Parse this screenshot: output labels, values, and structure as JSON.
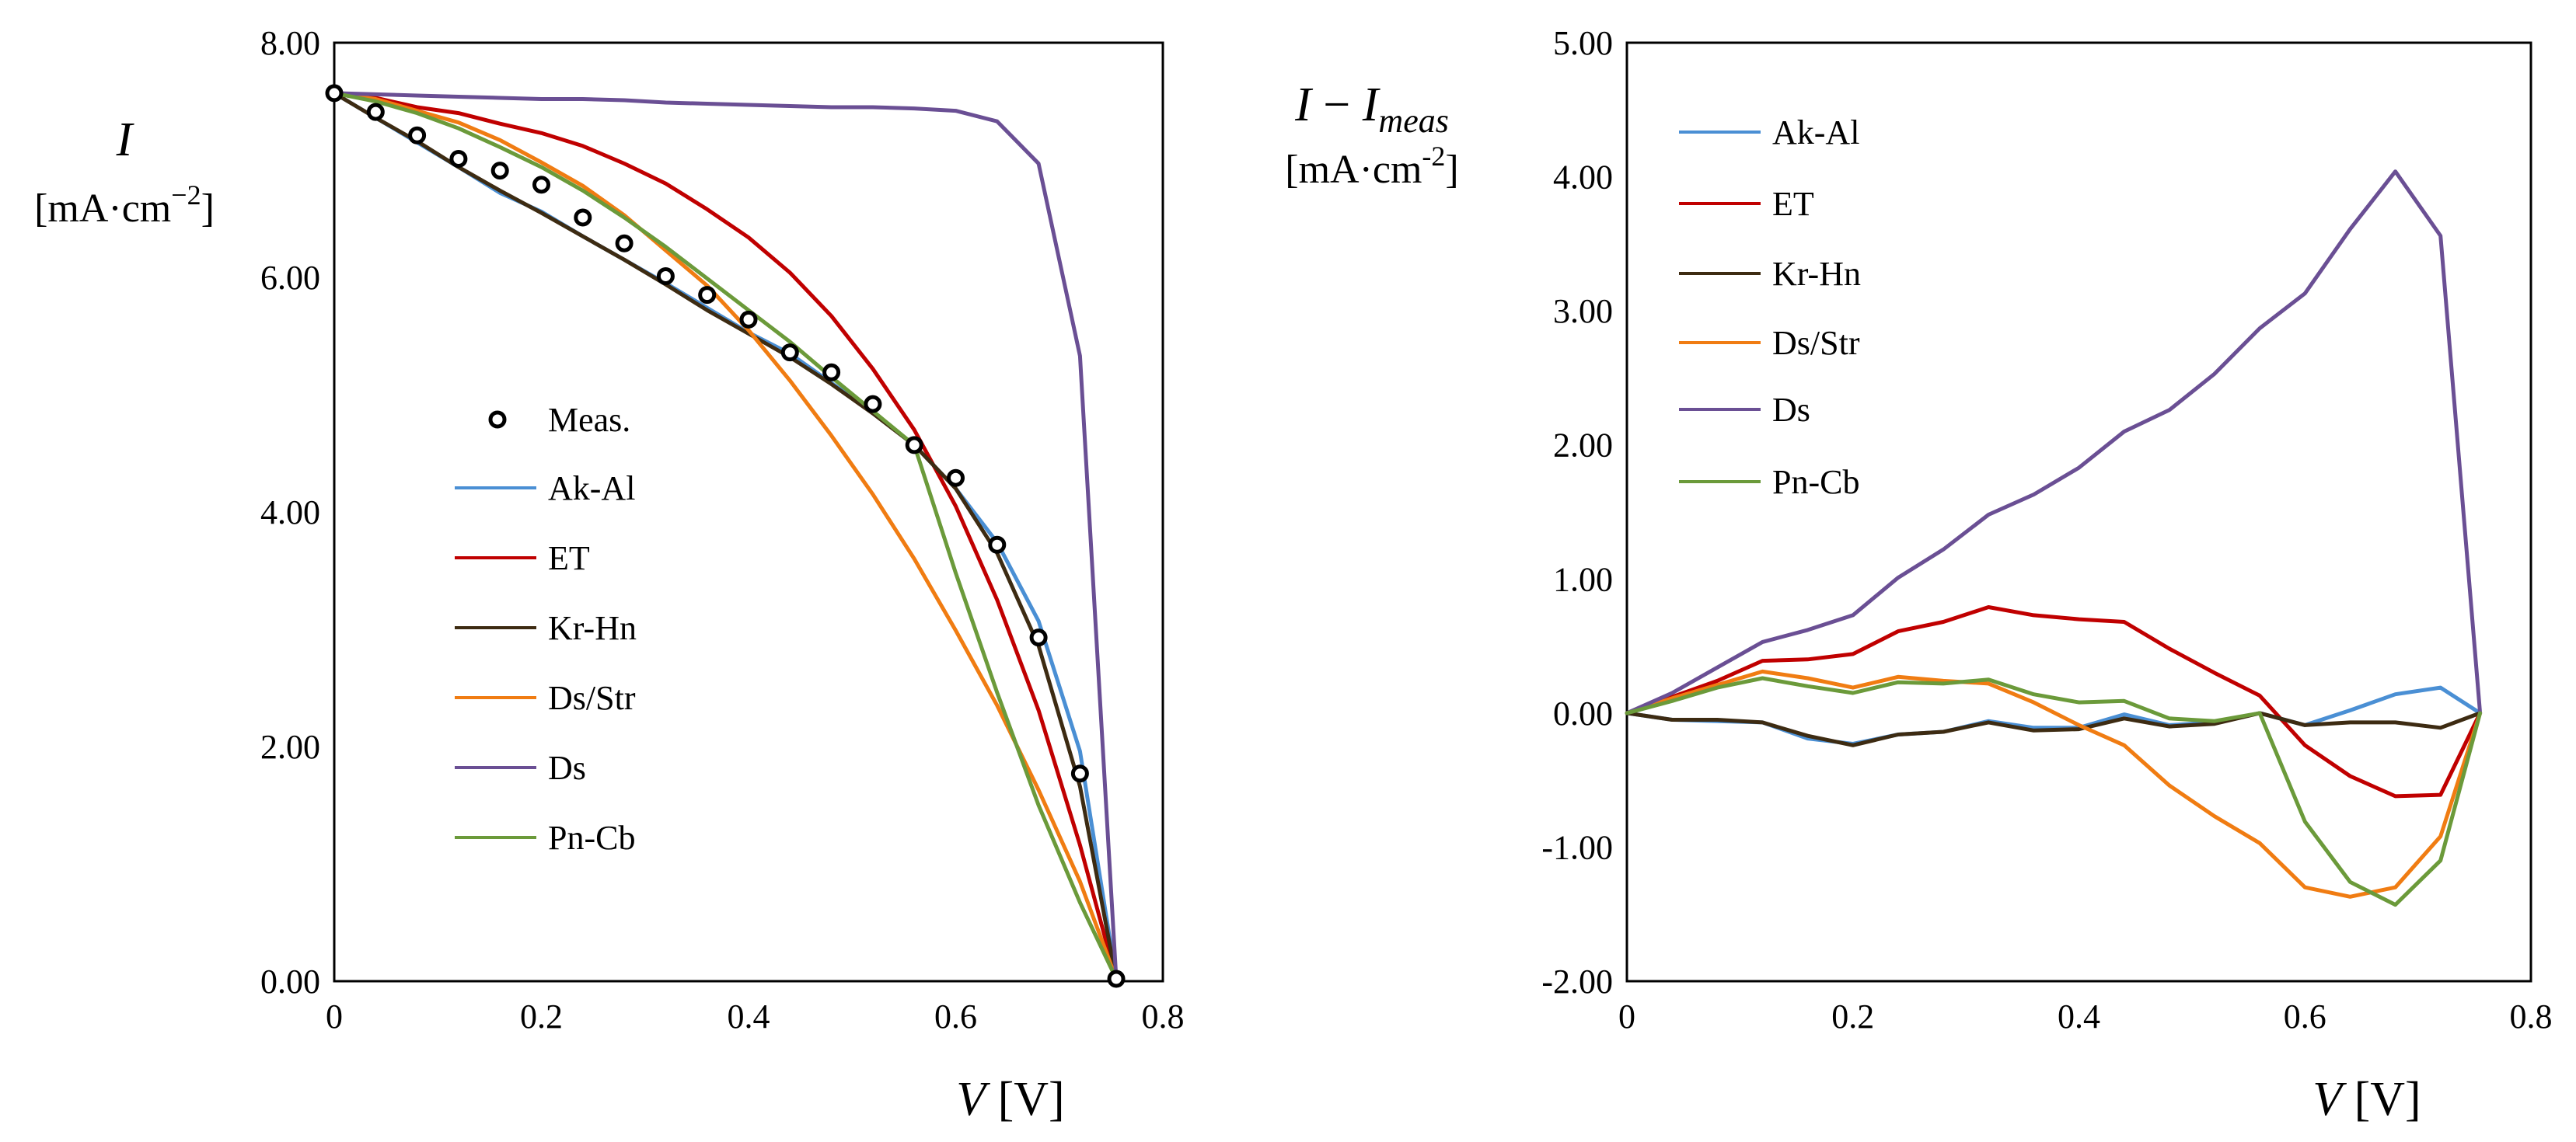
{
  "chart_data": [
    {
      "type": "line",
      "title": "",
      "xlabel": {
        "var": "V",
        "unit": " [V]"
      },
      "ylabel": {
        "var": "I",
        "unit": "[mA·cm",
        "unit_exp": "−2",
        "unit_close": "]"
      },
      "xlim": [
        0,
        0.8
      ],
      "ylim": [
        0,
        8
      ],
      "x_ticks": [
        "0",
        "0.2",
        "0.4",
        "0.6",
        "0.8"
      ],
      "x_tick_values": [
        0,
        0.2,
        0.4,
        0.6,
        0.8
      ],
      "y_ticks": [
        "0.00",
        "2.00",
        "4.00",
        "6.00",
        "8.00"
      ],
      "y_tick_values": [
        0,
        2,
        4,
        6,
        8
      ],
      "legend_position": "center",
      "measured": {
        "name": "Meas.",
        "x": [
          0,
          0.04,
          0.08,
          0.12,
          0.16,
          0.2,
          0.24,
          0.28,
          0.32,
          0.36,
          0.4,
          0.44,
          0.48,
          0.52,
          0.56,
          0.6,
          0.64,
          0.68,
          0.72,
          0.755
        ],
        "y": [
          7.57,
          7.41,
          7.21,
          7.01,
          6.91,
          6.79,
          6.51,
          6.29,
          6.01,
          5.85,
          5.64,
          5.36,
          5.19,
          4.92,
          4.57,
          4.29,
          3.72,
          2.93,
          1.77,
          0.02
        ]
      },
      "series": [
        {
          "name": "Ak-Al",
          "color": "#4a8fd4",
          "x": [
            0,
            0.04,
            0.08,
            0.12,
            0.16,
            0.2,
            0.24,
            0.28,
            0.32,
            0.36,
            0.4,
            0.44,
            0.48,
            0.52,
            0.56,
            0.6,
            0.64,
            0.68,
            0.72,
            0.755
          ],
          "y": [
            7.57,
            7.36,
            7.15,
            6.94,
            6.72,
            6.56,
            6.35,
            6.15,
            5.95,
            5.74,
            5.53,
            5.35,
            5.1,
            4.85,
            4.57,
            4.2,
            3.74,
            3.07,
            1.96,
            0.02
          ]
        },
        {
          "name": "ET",
          "color": "#c00000",
          "x": [
            0,
            0.04,
            0.08,
            0.12,
            0.16,
            0.2,
            0.24,
            0.28,
            0.32,
            0.36,
            0.4,
            0.44,
            0.48,
            0.52,
            0.56,
            0.6,
            0.64,
            0.68,
            0.72,
            0.755
          ],
          "y": [
            7.57,
            7.53,
            7.45,
            7.4,
            7.31,
            7.23,
            7.12,
            6.97,
            6.8,
            6.58,
            6.34,
            6.04,
            5.67,
            5.22,
            4.7,
            4.05,
            3.25,
            2.31,
            1.16,
            0.02
          ]
        },
        {
          "name": "Kr-Hn",
          "color": "#3d2b12",
          "x": [
            0,
            0.04,
            0.08,
            0.12,
            0.16,
            0.2,
            0.24,
            0.28,
            0.32,
            0.36,
            0.4,
            0.44,
            0.48,
            0.52,
            0.56,
            0.6,
            0.64,
            0.68,
            0.72,
            0.755
          ],
          "y": [
            7.57,
            7.36,
            7.16,
            6.94,
            6.74,
            6.55,
            6.35,
            6.15,
            5.94,
            5.72,
            5.52,
            5.32,
            5.09,
            4.84,
            4.57,
            4.2,
            3.65,
            2.86,
            1.66,
            0.02
          ]
        },
        {
          "name": "Ds/Str",
          "color": "#f07c12",
          "x": [
            0,
            0.04,
            0.08,
            0.12,
            0.16,
            0.2,
            0.24,
            0.28,
            0.32,
            0.36,
            0.4,
            0.44,
            0.48,
            0.52,
            0.56,
            0.6,
            0.64,
            0.68,
            0.72,
            0.755
          ],
          "y": [
            7.57,
            7.52,
            7.42,
            7.32,
            7.17,
            6.98,
            6.78,
            6.53,
            6.23,
            5.93,
            5.55,
            5.12,
            4.65,
            4.15,
            3.6,
            2.99,
            2.35,
            1.63,
            0.85,
            0.02
          ]
        },
        {
          "name": "Ds",
          "color": "#6a4f94",
          "x": [
            0,
            0.04,
            0.08,
            0.12,
            0.16,
            0.2,
            0.24,
            0.28,
            0.32,
            0.36,
            0.4,
            0.44,
            0.48,
            0.52,
            0.56,
            0.6,
            0.64,
            0.68,
            0.72,
            0.755
          ],
          "y": [
            7.57,
            7.56,
            7.55,
            7.54,
            7.53,
            7.52,
            7.52,
            7.51,
            7.49,
            7.48,
            7.47,
            7.46,
            7.45,
            7.45,
            7.44,
            7.42,
            7.33,
            6.97,
            5.33,
            0.02
          ]
        },
        {
          "name": "Pn-Cb",
          "color": "#6b9a3a",
          "x": [
            0,
            0.04,
            0.08,
            0.12,
            0.16,
            0.2,
            0.24,
            0.28,
            0.32,
            0.36,
            0.4,
            0.44,
            0.48,
            0.52,
            0.56,
            0.6,
            0.64,
            0.68,
            0.72,
            0.755
          ],
          "y": [
            7.57,
            7.5,
            7.4,
            7.27,
            7.11,
            6.94,
            6.74,
            6.51,
            6.26,
            5.99,
            5.72,
            5.45,
            5.15,
            4.86,
            4.57,
            3.48,
            2.46,
            1.5,
            0.67,
            0.02
          ]
        }
      ]
    },
    {
      "type": "line",
      "title": "",
      "xlabel": {
        "var": "V",
        "unit": " [V]"
      },
      "ylabel": {
        "var": "I",
        "sep": " − ",
        "var2": "I",
        "sub": "meas",
        "unit": "[mA·cm",
        "unit_exp": "-2",
        "unit_close": "]"
      },
      "xlim": [
        0,
        0.8
      ],
      "ylim": [
        -2,
        5
      ],
      "x_ticks": [
        "0",
        "0.2",
        "0.4",
        "0.6",
        "0.8"
      ],
      "x_tick_values": [
        0,
        0.2,
        0.4,
        0.6,
        0.8
      ],
      "y_ticks": [
        "-2.00",
        "-1.00",
        "0.00",
        "1.00",
        "2.00",
        "3.00",
        "4.00",
        "5.00"
      ],
      "y_tick_values": [
        -2,
        -1,
        0,
        1,
        2,
        3,
        4,
        5
      ],
      "legend_position": "top-left",
      "series": [
        {
          "name": "Ak-Al",
          "color": "#4a8fd4",
          "x": [
            0,
            0.04,
            0.08,
            0.12,
            0.16,
            0.2,
            0.24,
            0.28,
            0.32,
            0.36,
            0.4,
            0.44,
            0.48,
            0.52,
            0.56,
            0.6,
            0.64,
            0.68,
            0.72,
            0.755
          ],
          "y": [
            0,
            -0.05,
            -0.06,
            -0.07,
            -0.19,
            -0.23,
            -0.16,
            -0.14,
            -0.06,
            -0.11,
            -0.11,
            -0.01,
            -0.09,
            -0.07,
            0,
            -0.09,
            0.02,
            0.14,
            0.19,
            0
          ]
        },
        {
          "name": "ET",
          "color": "#c00000",
          "x": [
            0,
            0.04,
            0.08,
            0.12,
            0.16,
            0.2,
            0.24,
            0.28,
            0.32,
            0.36,
            0.4,
            0.44,
            0.48,
            0.52,
            0.56,
            0.6,
            0.64,
            0.68,
            0.72,
            0.755
          ],
          "y": [
            0,
            0.12,
            0.24,
            0.39,
            0.4,
            0.44,
            0.61,
            0.68,
            0.79,
            0.73,
            0.7,
            0.68,
            0.48,
            0.3,
            0.13,
            -0.24,
            -0.47,
            -0.62,
            -0.61,
            0
          ]
        },
        {
          "name": "Kr-Hn",
          "color": "#3d2b12",
          "x": [
            0,
            0.04,
            0.08,
            0.12,
            0.16,
            0.2,
            0.24,
            0.28,
            0.32,
            0.36,
            0.4,
            0.44,
            0.48,
            0.52,
            0.56,
            0.6,
            0.64,
            0.68,
            0.72,
            0.755
          ],
          "y": [
            0,
            -0.05,
            -0.05,
            -0.07,
            -0.17,
            -0.24,
            -0.16,
            -0.14,
            -0.07,
            -0.13,
            -0.12,
            -0.04,
            -0.1,
            -0.08,
            0,
            -0.09,
            -0.07,
            -0.07,
            -0.11,
            0
          ]
        },
        {
          "name": "Ds/Str",
          "color": "#f07c12",
          "x": [
            0,
            0.04,
            0.08,
            0.12,
            0.16,
            0.2,
            0.24,
            0.28,
            0.32,
            0.36,
            0.4,
            0.44,
            0.48,
            0.52,
            0.56,
            0.6,
            0.64,
            0.68,
            0.72,
            0.755
          ],
          "y": [
            0,
            0.11,
            0.21,
            0.31,
            0.26,
            0.19,
            0.27,
            0.24,
            0.22,
            0.08,
            -0.09,
            -0.24,
            -0.54,
            -0.77,
            -0.97,
            -1.3,
            -1.37,
            -1.3,
            -0.92,
            0
          ]
        },
        {
          "name": "Ds",
          "color": "#6a4f94",
          "x": [
            0,
            0.04,
            0.08,
            0.12,
            0.16,
            0.2,
            0.24,
            0.28,
            0.32,
            0.36,
            0.4,
            0.44,
            0.48,
            0.52,
            0.56,
            0.6,
            0.64,
            0.68,
            0.72,
            0.755
          ],
          "y": [
            0,
            0.15,
            0.34,
            0.53,
            0.62,
            0.73,
            1.01,
            1.22,
            1.48,
            1.63,
            1.83,
            2.1,
            2.26,
            2.53,
            2.87,
            3.13,
            3.61,
            4.04,
            3.56,
            0
          ]
        },
        {
          "name": "Pn-Cb",
          "color": "#6b9a3a",
          "x": [
            0,
            0.04,
            0.08,
            0.12,
            0.16,
            0.2,
            0.24,
            0.28,
            0.32,
            0.36,
            0.4,
            0.44,
            0.48,
            0.52,
            0.56,
            0.6,
            0.64,
            0.68,
            0.72,
            0.755
          ],
          "y": [
            0,
            0.09,
            0.19,
            0.26,
            0.2,
            0.15,
            0.23,
            0.22,
            0.25,
            0.14,
            0.08,
            0.09,
            -0.04,
            -0.06,
            0,
            -0.81,
            -1.26,
            -1.43,
            -1.1,
            0
          ]
        }
      ]
    }
  ]
}
